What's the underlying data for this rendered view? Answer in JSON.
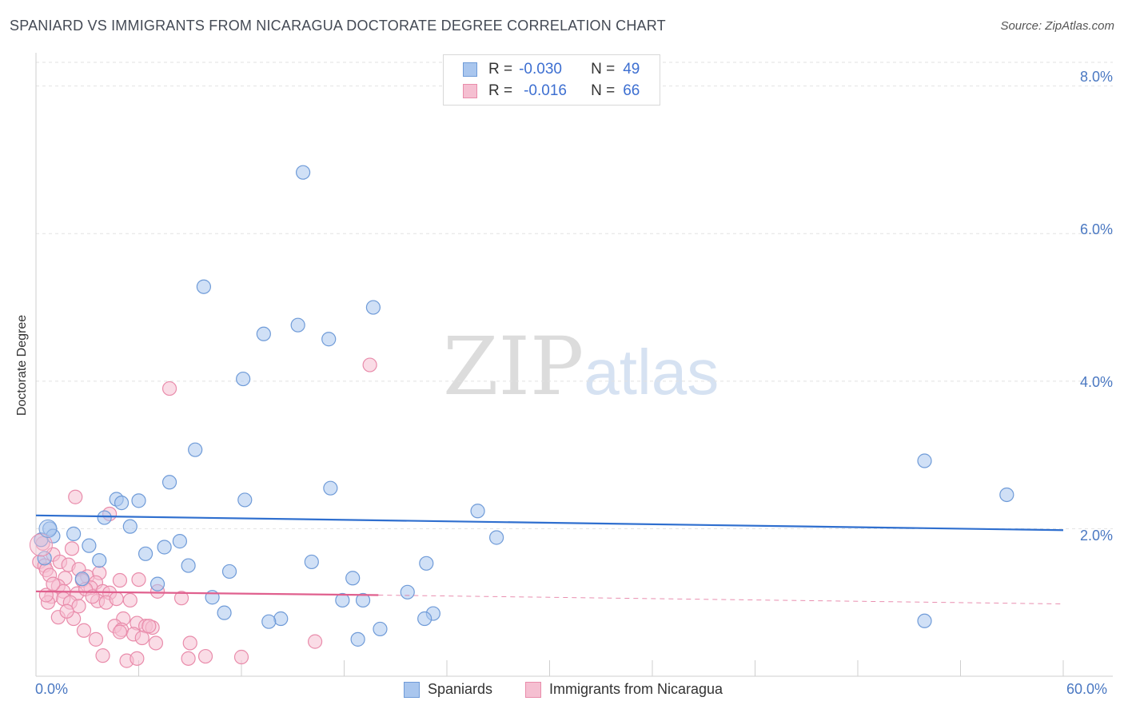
{
  "title": "SPANIARD VS IMMIGRANTS FROM NICARAGUA DOCTORATE DEGREE CORRELATION CHART",
  "source": "Source: ZipAtlas.com",
  "watermark": {
    "zip": "ZIP",
    "atlas": "atlas"
  },
  "legend": {
    "rows": [
      {
        "r_label": "R =",
        "r_value": "-0.030",
        "n_label": "N =",
        "n_value": "49"
      },
      {
        "r_label": "R =",
        "r_value": "-0.016",
        "n_label": "N =",
        "n_value": "66"
      }
    ]
  },
  "bottom_legend": {
    "series1": "Spaniards",
    "series2": "Immigrants from Nicaragua"
  },
  "colors": {
    "blue_fill": "#a9c6ee",
    "blue_stroke": "#6f9bd8",
    "blue_line": "#2f6fcf",
    "pink_fill": "#f5bfd1",
    "pink_stroke": "#e98cab",
    "pink_line": "#e0608e",
    "grid": "#e2e2e2",
    "tick_text": "#4a78c2"
  },
  "chart_data": {
    "type": "scatter",
    "title": "SPANIARD VS IMMIGRANTS FROM NICARAGUA DOCTORATE DEGREE CORRELATION CHART",
    "xlabel": "",
    "ylabel": "Doctorate Degree",
    "xlim": [
      0,
      60
    ],
    "ylim": [
      0,
      8.0
    ],
    "x_ticks": [
      "0.0%",
      "60.0%"
    ],
    "y_ticks": [
      "2.0%",
      "4.0%",
      "6.0%",
      "8.0%"
    ],
    "y_tick_values": [
      2.0,
      4.0,
      6.0,
      8.0
    ],
    "grid": true,
    "legend_position": "top-center",
    "series": [
      {
        "name": "Spaniards",
        "R": -0.03,
        "N": 49,
        "trend": {
          "x": [
            0,
            60
          ],
          "y": [
            2.18,
            1.98
          ]
        },
        "points": [
          [
            15.6,
            6.83
          ],
          [
            9.8,
            5.28
          ],
          [
            19.7,
            5.0
          ],
          [
            15.3,
            4.76
          ],
          [
            13.3,
            4.64
          ],
          [
            17.1,
            4.57
          ],
          [
            12.1,
            4.03
          ],
          [
            9.3,
            3.07
          ],
          [
            51.9,
            2.92
          ],
          [
            7.8,
            2.63
          ],
          [
            17.2,
            2.55
          ],
          [
            56.7,
            2.46
          ],
          [
            4.7,
            2.4
          ],
          [
            6.0,
            2.38
          ],
          [
            12.2,
            2.39
          ],
          [
            5.0,
            2.35
          ],
          [
            25.8,
            2.24
          ],
          [
            0.8,
            2.0
          ],
          [
            5.5,
            2.03
          ],
          [
            2.2,
            1.93
          ],
          [
            1.0,
            1.9
          ],
          [
            26.9,
            1.88
          ],
          [
            8.4,
            1.83
          ],
          [
            3.1,
            1.77
          ],
          [
            7.5,
            1.75
          ],
          [
            6.4,
            1.66
          ],
          [
            3.7,
            1.57
          ],
          [
            16.1,
            1.55
          ],
          [
            22.8,
            1.53
          ],
          [
            8.9,
            1.5
          ],
          [
            11.3,
            1.42
          ],
          [
            18.5,
            1.33
          ],
          [
            2.7,
            1.32
          ],
          [
            7.1,
            1.25
          ],
          [
            21.7,
            1.14
          ],
          [
            10.3,
            1.07
          ],
          [
            17.9,
            1.03
          ],
          [
            19.1,
            1.03
          ],
          [
            11.0,
            0.86
          ],
          [
            23.2,
            0.85
          ],
          [
            22.7,
            0.78
          ],
          [
            14.3,
            0.78
          ],
          [
            13.6,
            0.74
          ],
          [
            51.9,
            0.75
          ],
          [
            20.1,
            0.64
          ],
          [
            18.8,
            0.5
          ],
          [
            0.3,
            1.85
          ],
          [
            0.5,
            1.6
          ],
          [
            4.0,
            2.15
          ]
        ]
      },
      {
        "name": "Immigrants from Nicaragua",
        "R": -0.016,
        "N": 66,
        "trend": {
          "x": [
            0,
            20
          ],
          "y": [
            1.15,
            1.1
          ],
          "dashed_to": [
            60,
            0.98
          ]
        },
        "points": [
          [
            19.5,
            4.22
          ],
          [
            7.8,
            3.9
          ],
          [
            2.3,
            2.43
          ],
          [
            4.3,
            2.2
          ],
          [
            0.4,
            1.8
          ],
          [
            1.0,
            1.65
          ],
          [
            2.1,
            1.73
          ],
          [
            0.2,
            1.55
          ],
          [
            0.5,
            1.5
          ],
          [
            1.4,
            1.55
          ],
          [
            0.6,
            1.44
          ],
          [
            1.9,
            1.51
          ],
          [
            0.8,
            1.37
          ],
          [
            2.5,
            1.45
          ],
          [
            1.7,
            1.33
          ],
          [
            3.0,
            1.35
          ],
          [
            3.7,
            1.4
          ],
          [
            4.9,
            1.3
          ],
          [
            2.7,
            1.3
          ],
          [
            3.5,
            1.27
          ],
          [
            1.3,
            1.22
          ],
          [
            3.2,
            1.2
          ],
          [
            1.6,
            1.15
          ],
          [
            2.4,
            1.12
          ],
          [
            3.9,
            1.15
          ],
          [
            4.3,
            1.13
          ],
          [
            7.1,
            1.15
          ],
          [
            0.9,
            1.08
          ],
          [
            1.6,
            1.05
          ],
          [
            3.6,
            1.02
          ],
          [
            2.0,
            1.0
          ],
          [
            0.7,
            1.0
          ],
          [
            4.1,
            1.0
          ],
          [
            5.5,
            1.03
          ],
          [
            8.5,
            1.06
          ],
          [
            1.3,
            0.8
          ],
          [
            2.2,
            0.78
          ],
          [
            5.1,
            0.78
          ],
          [
            5.9,
            0.72
          ],
          [
            6.4,
            0.68
          ],
          [
            6.8,
            0.66
          ],
          [
            4.6,
            0.68
          ],
          [
            2.8,
            0.62
          ],
          [
            5.0,
            0.63
          ],
          [
            5.7,
            0.57
          ],
          [
            3.5,
            0.5
          ],
          [
            6.2,
            0.52
          ],
          [
            7.0,
            0.45
          ],
          [
            9.0,
            0.45
          ],
          [
            16.3,
            0.47
          ],
          [
            3.9,
            0.28
          ],
          [
            5.3,
            0.21
          ],
          [
            5.9,
            0.24
          ],
          [
            8.9,
            0.24
          ],
          [
            9.9,
            0.27
          ],
          [
            12.0,
            0.26
          ],
          [
            6.0,
            1.31
          ],
          [
            0.6,
            1.1
          ],
          [
            1.0,
            1.25
          ],
          [
            2.9,
            1.18
          ],
          [
            3.3,
            1.08
          ],
          [
            4.7,
            1.05
          ],
          [
            6.6,
            0.68
          ],
          [
            4.9,
            0.6
          ],
          [
            2.5,
            0.95
          ],
          [
            1.8,
            0.88
          ]
        ]
      }
    ]
  }
}
